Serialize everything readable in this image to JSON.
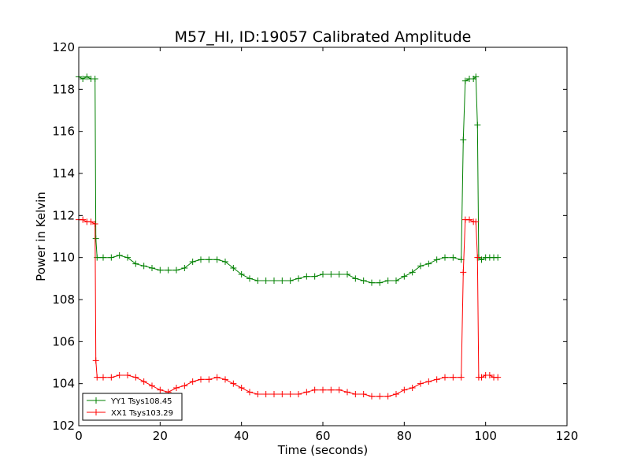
{
  "chart_data": {
    "type": "line",
    "title": "M57_HI, ID:19057 Calibrated Amplitude",
    "xlabel": "Time (seconds)",
    "ylabel": "Power in Kelvin",
    "xlim": [
      0,
      120
    ],
    "ylim": [
      102,
      120
    ],
    "xticks": [
      0,
      20,
      40,
      60,
      80,
      100,
      120
    ],
    "yticks": [
      102,
      104,
      106,
      108,
      110,
      112,
      114,
      116,
      118,
      120
    ],
    "grid": false,
    "legend_position": "lower-left",
    "series": [
      {
        "name": "YY1 Tsys108.45",
        "color": "#008000",
        "marker": "plus",
        "points": [
          [
            0.0,
            118.6
          ],
          [
            1.0,
            118.5
          ],
          [
            2.0,
            118.6
          ],
          [
            3.0,
            118.5
          ],
          [
            4.0,
            118.5
          ],
          [
            4.2,
            110.9
          ],
          [
            4.5,
            110.0
          ],
          [
            6.0,
            110.0
          ],
          [
            8.0,
            110.0
          ],
          [
            10.0,
            110.1
          ],
          [
            12.0,
            110.0
          ],
          [
            14.0,
            109.7
          ],
          [
            16.0,
            109.6
          ],
          [
            18.0,
            109.5
          ],
          [
            20.0,
            109.4
          ],
          [
            22.0,
            109.4
          ],
          [
            24.0,
            109.4
          ],
          [
            26.0,
            109.5
          ],
          [
            28.0,
            109.8
          ],
          [
            30.0,
            109.9
          ],
          [
            32.0,
            109.9
          ],
          [
            34.0,
            109.9
          ],
          [
            36.0,
            109.8
          ],
          [
            38.0,
            109.5
          ],
          [
            40.0,
            109.2
          ],
          [
            42.0,
            109.0
          ],
          [
            44.0,
            108.9
          ],
          [
            46.0,
            108.9
          ],
          [
            48.0,
            108.9
          ],
          [
            50.0,
            108.9
          ],
          [
            52.0,
            108.9
          ],
          [
            54.0,
            109.0
          ],
          [
            56.0,
            109.1
          ],
          [
            58.0,
            109.1
          ],
          [
            60.0,
            109.2
          ],
          [
            62.0,
            109.2
          ],
          [
            64.0,
            109.2
          ],
          [
            66.0,
            109.2
          ],
          [
            68.0,
            109.0
          ],
          [
            70.0,
            108.9
          ],
          [
            72.0,
            108.8
          ],
          [
            74.0,
            108.8
          ],
          [
            76.0,
            108.9
          ],
          [
            78.0,
            108.9
          ],
          [
            80.0,
            109.1
          ],
          [
            82.0,
            109.3
          ],
          [
            84.0,
            109.6
          ],
          [
            86.0,
            109.7
          ],
          [
            88.0,
            109.9
          ],
          [
            90.0,
            110.0
          ],
          [
            92.0,
            110.0
          ],
          [
            94.0,
            109.9
          ],
          [
            94.5,
            115.6
          ],
          [
            95.0,
            118.4
          ],
          [
            96.0,
            118.5
          ],
          [
            97.0,
            118.5
          ],
          [
            97.6,
            118.6
          ],
          [
            98.0,
            116.3
          ],
          [
            98.3,
            110.0
          ],
          [
            99.0,
            109.9
          ],
          [
            100.0,
            110.0
          ],
          [
            101.0,
            110.0
          ],
          [
            102.0,
            110.0
          ],
          [
            103.0,
            110.0
          ]
        ]
      },
      {
        "name": "XX1 Tsys103.29",
        "color": "#ff0000",
        "marker": "plus",
        "points": [
          [
            0.0,
            111.8
          ],
          [
            1.0,
            111.8
          ],
          [
            2.0,
            111.7
          ],
          [
            3.0,
            111.7
          ],
          [
            4.0,
            111.6
          ],
          [
            4.2,
            105.1
          ],
          [
            4.5,
            104.3
          ],
          [
            6.0,
            104.3
          ],
          [
            8.0,
            104.3
          ],
          [
            10.0,
            104.4
          ],
          [
            12.0,
            104.4
          ],
          [
            14.0,
            104.3
          ],
          [
            16.0,
            104.1
          ],
          [
            18.0,
            103.9
          ],
          [
            20.0,
            103.7
          ],
          [
            22.0,
            103.6
          ],
          [
            24.0,
            103.8
          ],
          [
            26.0,
            103.9
          ],
          [
            28.0,
            104.1
          ],
          [
            30.0,
            104.2
          ],
          [
            32.0,
            104.2
          ],
          [
            34.0,
            104.3
          ],
          [
            36.0,
            104.2
          ],
          [
            38.0,
            104.0
          ],
          [
            40.0,
            103.8
          ],
          [
            42.0,
            103.6
          ],
          [
            44.0,
            103.5
          ],
          [
            46.0,
            103.5
          ],
          [
            48.0,
            103.5
          ],
          [
            50.0,
            103.5
          ],
          [
            52.0,
            103.5
          ],
          [
            54.0,
            103.5
          ],
          [
            56.0,
            103.6
          ],
          [
            58.0,
            103.7
          ],
          [
            60.0,
            103.7
          ],
          [
            62.0,
            103.7
          ],
          [
            64.0,
            103.7
          ],
          [
            66.0,
            103.6
          ],
          [
            68.0,
            103.5
          ],
          [
            70.0,
            103.5
          ],
          [
            72.0,
            103.4
          ],
          [
            74.0,
            103.4
          ],
          [
            76.0,
            103.4
          ],
          [
            78.0,
            103.5
          ],
          [
            80.0,
            103.7
          ],
          [
            82.0,
            103.8
          ],
          [
            84.0,
            104.0
          ],
          [
            86.0,
            104.1
          ],
          [
            88.0,
            104.2
          ],
          [
            90.0,
            104.3
          ],
          [
            92.0,
            104.3
          ],
          [
            94.0,
            104.3
          ],
          [
            94.5,
            109.3
          ],
          [
            95.0,
            111.8
          ],
          [
            96.0,
            111.8
          ],
          [
            97.0,
            111.7
          ],
          [
            97.6,
            111.7
          ],
          [
            98.0,
            110.0
          ],
          [
            98.3,
            104.3
          ],
          [
            99.0,
            104.3
          ],
          [
            100.0,
            104.4
          ],
          [
            101.0,
            104.4
          ],
          [
            102.0,
            104.3
          ],
          [
            103.0,
            104.3
          ]
        ]
      }
    ]
  }
}
